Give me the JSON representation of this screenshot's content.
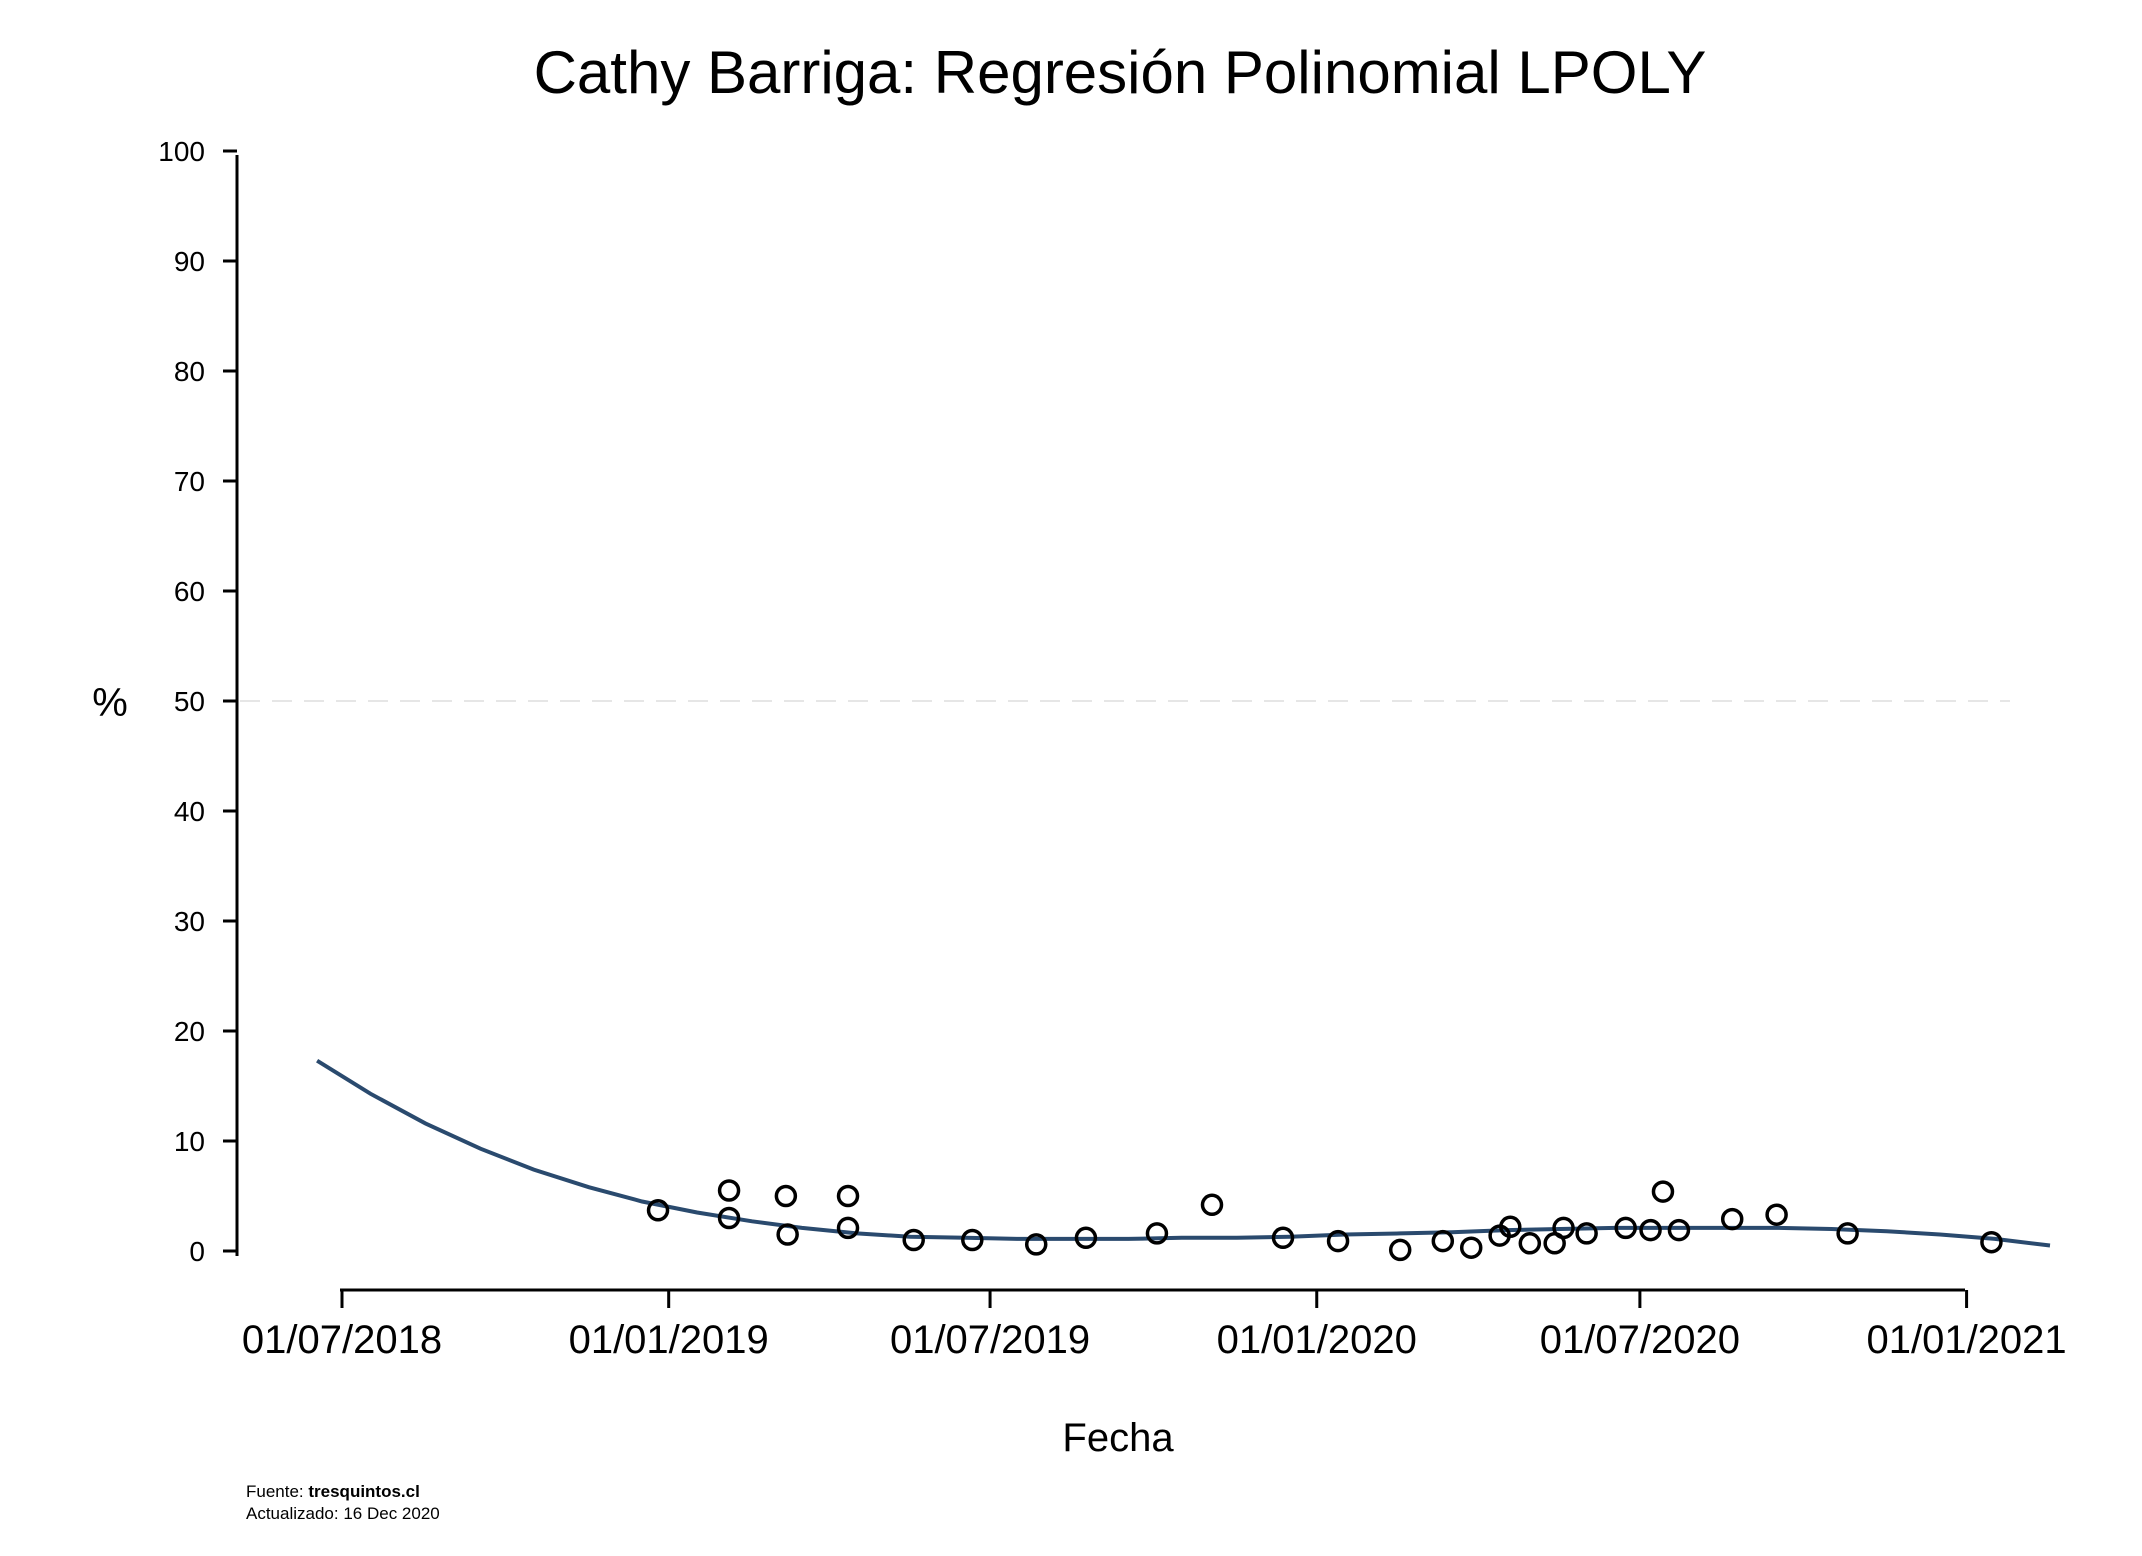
{
  "chart_data": {
    "type": "scatter",
    "title": "Cathy Barriga: Regresión Polinomial LPOLY",
    "xlabel": "Fecha",
    "ylabel": "%",
    "x_type": "date",
    "xlim": [
      "2018-05-27",
      "2021-01-21"
    ],
    "ylim": [
      0,
      100
    ],
    "x_ticks": [
      "2018-07-01",
      "2019-01-01",
      "2019-07-01",
      "2020-01-01",
      "2020-07-01",
      "2021-01-01"
    ],
    "x_tick_labels": [
      "01/07/2018",
      "01/01/2019",
      "01/07/2019",
      "01/01/2020",
      "01/07/2020",
      "01/01/2021"
    ],
    "y_ticks": [
      0,
      10,
      20,
      30,
      40,
      50,
      60,
      70,
      80,
      90,
      100
    ],
    "y_tick_labels": [
      "0",
      "10",
      "20",
      "30",
      "40",
      "50",
      "60",
      "70",
      "80",
      "90",
      "100"
    ],
    "reference_line": {
      "y": 50,
      "style": "dashed",
      "color": "#e6e6e6"
    },
    "grid": false,
    "legend": "none",
    "series": [
      {
        "type": "scatter",
        "marker": "hollow-circle",
        "color": "#000000",
        "points": [
          {
            "x": "2018-12-26",
            "y": 3.7
          },
          {
            "x": "2019-02-04",
            "y": 5.5
          },
          {
            "x": "2019-02-04",
            "y": 3.0
          },
          {
            "x": "2019-03-08",
            "y": 5.0
          },
          {
            "x": "2019-03-09",
            "y": 1.5
          },
          {
            "x": "2019-04-12",
            "y": 5.0
          },
          {
            "x": "2019-04-12",
            "y": 2.1
          },
          {
            "x": "2019-05-19",
            "y": 1.0
          },
          {
            "x": "2019-06-21",
            "y": 1.0
          },
          {
            "x": "2019-07-27",
            "y": 0.6
          },
          {
            "x": "2019-08-24",
            "y": 1.2
          },
          {
            "x": "2019-10-03",
            "y": 1.6
          },
          {
            "x": "2019-11-03",
            "y": 4.2
          },
          {
            "x": "2019-12-13",
            "y": 1.2
          },
          {
            "x": "2020-01-13",
            "y": 0.9
          },
          {
            "x": "2020-02-17",
            "y": 0.1
          },
          {
            "x": "2020-03-12",
            "y": 0.9
          },
          {
            "x": "2020-03-28",
            "y": 0.3
          },
          {
            "x": "2020-04-13",
            "y": 1.4
          },
          {
            "x": "2020-04-19",
            "y": 2.2
          },
          {
            "x": "2020-04-30",
            "y": 0.7
          },
          {
            "x": "2020-05-14",
            "y": 0.7
          },
          {
            "x": "2020-05-19",
            "y": 2.1
          },
          {
            "x": "2020-06-01",
            "y": 1.6
          },
          {
            "x": "2020-06-23",
            "y": 2.1
          },
          {
            "x": "2020-07-07",
            "y": 1.9
          },
          {
            "x": "2020-07-14",
            "y": 5.4
          },
          {
            "x": "2020-07-23",
            "y": 1.9
          },
          {
            "x": "2020-08-22",
            "y": 2.9
          },
          {
            "x": "2020-09-16",
            "y": 3.3
          },
          {
            "x": "2020-10-26",
            "y": 1.6
          },
          {
            "x": "2021-01-15",
            "y": 0.8
          }
        ]
      },
      {
        "type": "line",
        "color": "#2a4a6e",
        "points": [
          {
            "x": "2018-06-17",
            "y": 17.3
          },
          {
            "x": "2018-07-17",
            "y": 14.3
          },
          {
            "x": "2018-08-17",
            "y": 11.6
          },
          {
            "x": "2018-09-17",
            "y": 9.3
          },
          {
            "x": "2018-10-17",
            "y": 7.4
          },
          {
            "x": "2018-11-17",
            "y": 5.8
          },
          {
            "x": "2018-12-17",
            "y": 4.5
          },
          {
            "x": "2019-01-17",
            "y": 3.5
          },
          {
            "x": "2019-02-17",
            "y": 2.7
          },
          {
            "x": "2019-03-17",
            "y": 2.1
          },
          {
            "x": "2019-04-17",
            "y": 1.6
          },
          {
            "x": "2019-05-17",
            "y": 1.3
          },
          {
            "x": "2019-06-17",
            "y": 1.2
          },
          {
            "x": "2019-07-17",
            "y": 1.1
          },
          {
            "x": "2019-08-17",
            "y": 1.1
          },
          {
            "x": "2019-09-17",
            "y": 1.1
          },
          {
            "x": "2019-10-17",
            "y": 1.2
          },
          {
            "x": "2019-11-17",
            "y": 1.2
          },
          {
            "x": "2019-12-17",
            "y": 1.3
          },
          {
            "x": "2020-01-17",
            "y": 1.5
          },
          {
            "x": "2020-02-17",
            "y": 1.6
          },
          {
            "x": "2020-03-17",
            "y": 1.7
          },
          {
            "x": "2020-04-17",
            "y": 1.9
          },
          {
            "x": "2020-05-17",
            "y": 2.0
          },
          {
            "x": "2020-06-17",
            "y": 2.1
          },
          {
            "x": "2020-07-17",
            "y": 2.1
          },
          {
            "x": "2020-08-17",
            "y": 2.1
          },
          {
            "x": "2020-09-17",
            "y": 2.1
          },
          {
            "x": "2020-10-17",
            "y": 2.0
          },
          {
            "x": "2020-11-17",
            "y": 1.8
          },
          {
            "x": "2020-12-17",
            "y": 1.5
          },
          {
            "x": "2021-01-17",
            "y": 1.1
          },
          {
            "x": "2021-02-17",
            "y": 0.5
          }
        ]
      }
    ]
  },
  "footer": {
    "source_label": "Fuente: ",
    "source_value": "tresquintos.cl",
    "updated": "Actualizado: 16 Dec 2020"
  }
}
